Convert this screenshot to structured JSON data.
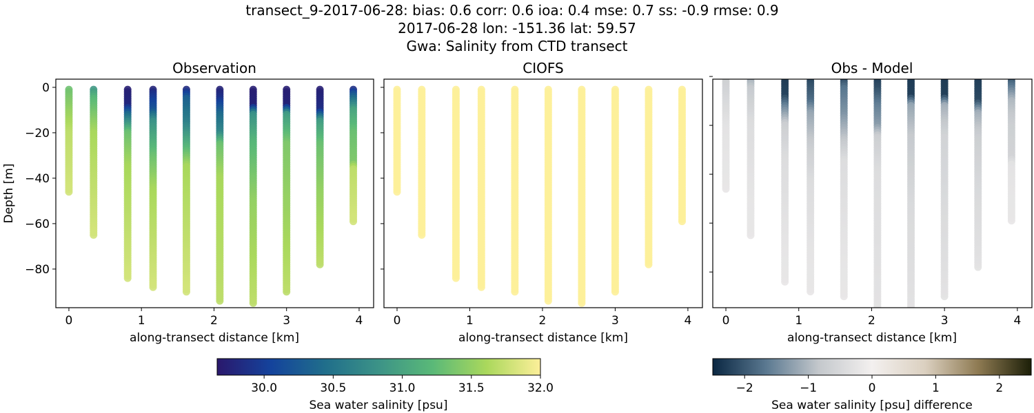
{
  "title": {
    "line1": "transect_9-2017-06-28: bias: 0.6  corr: 0.6  ioa: 0.4  mse: 0.7  ss: -0.9  rmse: 0.9",
    "line2": "2017-06-28 lon: -151.36 lat: 59.57",
    "line3": "Gwa: Salinity from CTD transect"
  },
  "chart_data": [
    {
      "type": "scatter",
      "title": "Observation",
      "xlabel": "along-transect distance [km]",
      "ylabel": "Depth [m]",
      "xticks": [
        "0",
        "1",
        "2",
        "3",
        "4"
      ],
      "yticks": [
        "0",
        "−20",
        "−40",
        "−60",
        "−80"
      ],
      "xlim": [
        -0.18,
        4.2
      ],
      "ylim": [
        -97,
        3.6
      ],
      "colormap": "haline",
      "stations": [
        {
          "x": 0.0,
          "max_depth": 46,
          "profile": [
            [
              0,
              31.3
            ],
            [
              10,
              31.5
            ],
            [
              20,
              31.7
            ],
            [
              46,
              31.8
            ]
          ]
        },
        {
          "x": 0.34,
          "max_depth": 65,
          "profile": [
            [
              0,
              30.8
            ],
            [
              5,
              31.2
            ],
            [
              20,
              31.6
            ],
            [
              40,
              31.7
            ],
            [
              65,
              31.8
            ]
          ]
        },
        {
          "x": 0.81,
          "max_depth": 84,
          "profile": [
            [
              0,
              29.7
            ],
            [
              8,
              29.8
            ],
            [
              12,
              30.4
            ],
            [
              20,
              31.3
            ],
            [
              35,
              31.6
            ],
            [
              84,
              31.8
            ]
          ]
        },
        {
          "x": 1.16,
          "max_depth": 88,
          "profile": [
            [
              0,
              29.7
            ],
            [
              3,
              29.9
            ],
            [
              10,
              30.2
            ],
            [
              15,
              30.8
            ],
            [
              30,
              31.3
            ],
            [
              45,
              31.6
            ],
            [
              88,
              31.8
            ]
          ]
        },
        {
          "x": 1.62,
          "max_depth": 90,
          "profile": [
            [
              0,
              29.7
            ],
            [
              5,
              30.3
            ],
            [
              15,
              30.6
            ],
            [
              25,
              31.1
            ],
            [
              35,
              31.6
            ],
            [
              90,
              31.8
            ]
          ]
        },
        {
          "x": 2.08,
          "max_depth": 94,
          "profile": [
            [
              0,
              29.7
            ],
            [
              5,
              29.9
            ],
            [
              12,
              30.4
            ],
            [
              20,
              30.7
            ],
            [
              25,
              31.3
            ],
            [
              40,
              31.6
            ],
            [
              94,
              31.7
            ]
          ]
        },
        {
          "x": 2.54,
          "max_depth": 95,
          "profile": [
            [
              0,
              29.7
            ],
            [
              8,
              29.75
            ],
            [
              12,
              30.8
            ],
            [
              25,
              31.2
            ],
            [
              50,
              31.5
            ],
            [
              95,
              31.7
            ]
          ]
        },
        {
          "x": 3.0,
          "max_depth": 90,
          "profile": [
            [
              0,
              29.7
            ],
            [
              8,
              29.75
            ],
            [
              12,
              30.9
            ],
            [
              25,
              31.4
            ],
            [
              90,
              31.7
            ]
          ]
        },
        {
          "x": 3.46,
          "max_depth": 78,
          "profile": [
            [
              0,
              29.7
            ],
            [
              10,
              29.85
            ],
            [
              15,
              30.9
            ],
            [
              25,
              31.3
            ],
            [
              45,
              31.5
            ],
            [
              78,
              31.7
            ]
          ]
        },
        {
          "x": 3.92,
          "max_depth": 59,
          "profile": [
            [
              0,
              29.7
            ],
            [
              3,
              30.2
            ],
            [
              10,
              31.0
            ],
            [
              20,
              31.3
            ],
            [
              33,
              31.4
            ],
            [
              36,
              31.7
            ],
            [
              59,
              31.8
            ]
          ]
        }
      ]
    },
    {
      "type": "scatter",
      "title": "CIOFS",
      "xlabel": "along-transect distance [km]",
      "xticks": [
        "0",
        "1",
        "2",
        "3",
        "4"
      ],
      "xlim": [
        -0.18,
        4.2
      ],
      "ylim": [
        -97,
        3.6
      ],
      "colormap": "haline",
      "model_salinity": 32.0
    },
    {
      "type": "scatter",
      "title": "Obs - Model",
      "xlabel": "along-transect distance [km]",
      "xticks": [
        "0",
        "1",
        "2",
        "3",
        "4"
      ],
      "xlim": [
        -0.18,
        4.2
      ],
      "ylim": [
        -94.6,
        -1.1
      ],
      "colormap": "diff"
    }
  ],
  "colorbars": [
    {
      "label": "Sea water salinity [psu]",
      "range": [
        29.66,
        32.0
      ],
      "ticks": [
        30.0,
        30.5,
        31.0,
        31.5,
        32.0
      ],
      "tick_labels": [
        "30.0",
        "30.5",
        "31.0",
        "31.5",
        "32.0"
      ],
      "colors": [
        "#2a186c",
        "#14439c",
        "#206e8b",
        "#3c9387",
        "#5ab978",
        "#aad85c",
        "#fdef9a"
      ]
    },
    {
      "label": "Sea water salinity [psu] difference",
      "range": [
        -2.5,
        2.5
      ],
      "ticks": [
        -2,
        -1,
        0,
        1,
        2
      ],
      "tick_labels": [
        "−2",
        "−1",
        "0",
        "1",
        "2"
      ],
      "colors": [
        "#0a2742",
        "#5a7890",
        "#c4c8cc",
        "#f3f0ef",
        "#dbd0c0",
        "#8e7a52",
        "#1c1f08"
      ]
    }
  ]
}
